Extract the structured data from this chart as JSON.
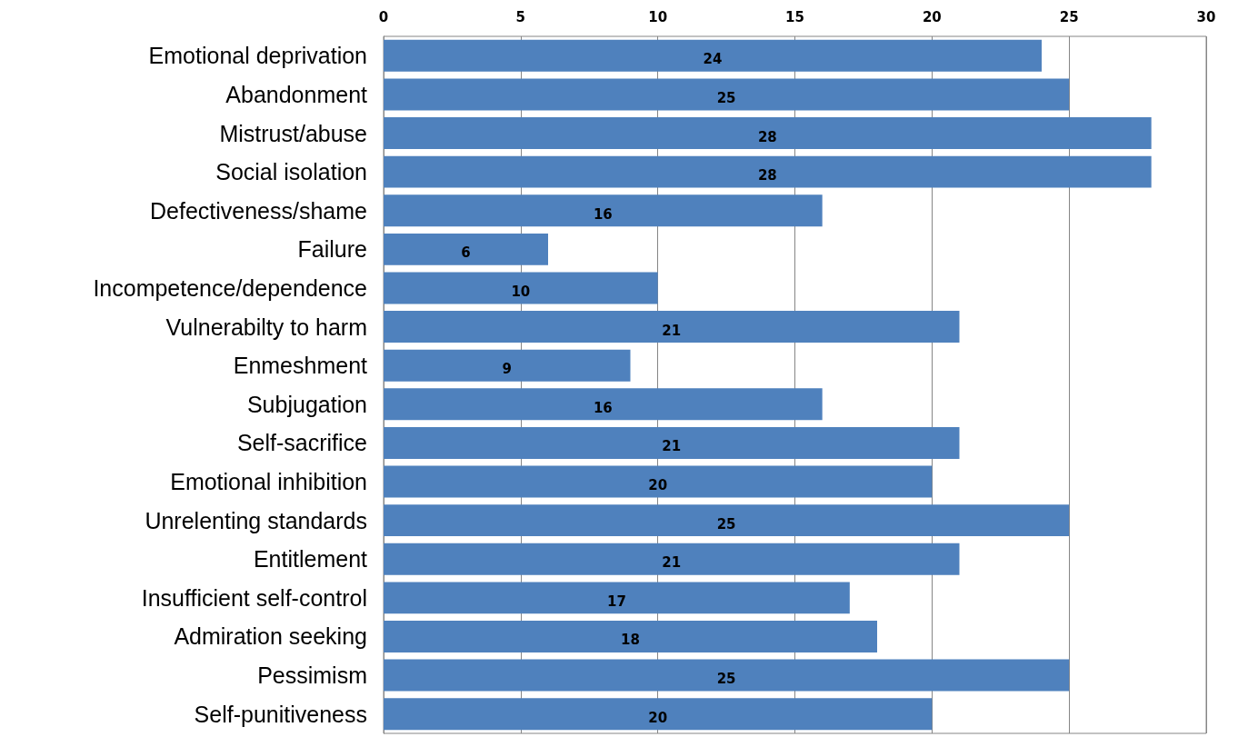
{
  "chart_data": {
    "type": "bar",
    "orientation": "horizontal",
    "categories": [
      "Emotional deprivation",
      "Abandonment",
      "Mistrust/abuse",
      "Social isolation",
      "Defectiveness/shame",
      "Failure",
      "Incompetence/dependence",
      "Vulnerabilty to harm",
      "Enmeshment",
      "Subjugation",
      "Self-sacrifice",
      "Emotional inhibition",
      "Unrelenting standards",
      "Entitlement",
      "Insufficient self-control",
      "Admiration seeking",
      "Pessimism",
      "Self-punitiveness"
    ],
    "values": [
      24,
      25,
      28,
      28,
      16,
      6,
      10,
      21,
      9,
      16,
      21,
      20,
      25,
      21,
      17,
      18,
      25,
      20
    ],
    "color": "#4f81bd",
    "xlim": [
      0,
      30
    ],
    "xticks": [
      0,
      5,
      10,
      15,
      20,
      25,
      30
    ],
    "grid": "x",
    "data_labels": true
  }
}
